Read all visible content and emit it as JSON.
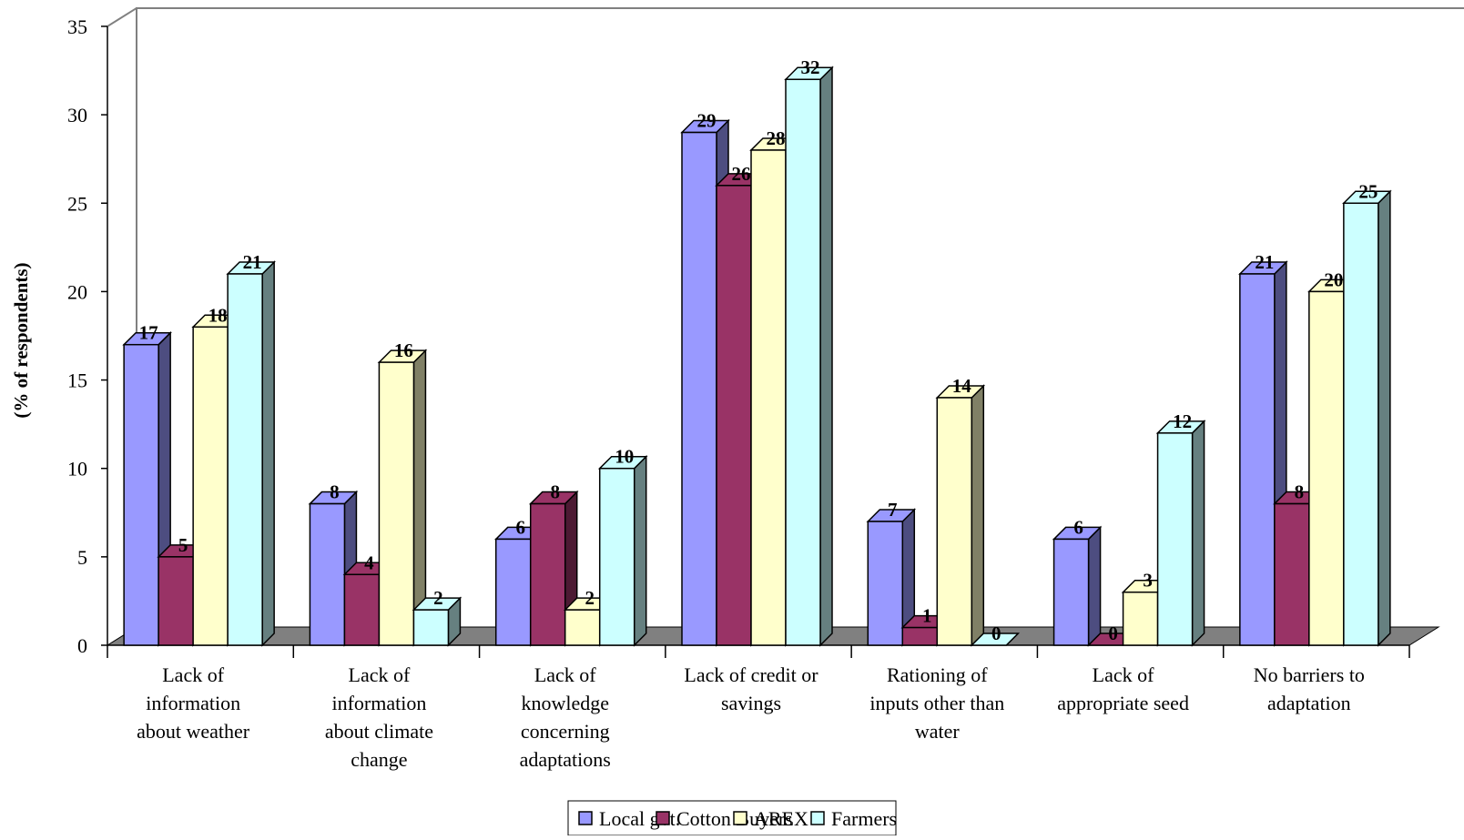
{
  "chart_data": {
    "type": "bar",
    "style": "3d-clustered-column",
    "title": "",
    "xlabel": "",
    "ylabel": "(% of respondents)",
    "ylim": [
      0,
      35
    ],
    "yticks": [
      "0",
      "5",
      "10",
      "15",
      "20",
      "25",
      "30",
      "35"
    ],
    "grid": false,
    "legend_position": "bottom",
    "categories": [
      [
        "Lack of",
        "information",
        "about weather"
      ],
      [
        "Lack of",
        "information",
        "about climate",
        "change"
      ],
      [
        "Lack of",
        "knowledge",
        "concerning",
        "adaptations"
      ],
      [
        "Lack of credit or",
        "savings"
      ],
      [
        "Rationing of",
        "inputs other than",
        "water"
      ],
      [
        "Lack of",
        "appropriate seed"
      ],
      [
        "No barriers to",
        "adaptation"
      ]
    ],
    "series": [
      {
        "name": "Local gvt.",
        "color": "#9999ff",
        "values": [
          17,
          8,
          6,
          29,
          7,
          6,
          21
        ]
      },
      {
        "name": "Cotton Buyers",
        "color": "#993366",
        "values": [
          5,
          4,
          8,
          26,
          1,
          0,
          8
        ]
      },
      {
        "name": "AREX",
        "color": "#ffffcc",
        "values": [
          18,
          16,
          2,
          28,
          14,
          3,
          20
        ]
      },
      {
        "name": "Farmers",
        "color": "#ccffff",
        "values": [
          21,
          2,
          10,
          32,
          0,
          12,
          25
        ]
      }
    ],
    "floor_color": "#808080",
    "side_shading": {
      "#9999ff": "#4d4d80",
      "#993366": "#4d1a33",
      "#ffffcc": "#808066",
      "#ccffff": "#668080"
    }
  }
}
